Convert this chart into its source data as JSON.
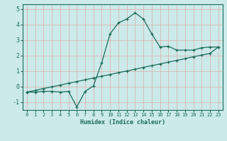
{
  "xlabel": "Humidex (Indice chaleur)",
  "bg_color": "#cceaea",
  "grid_color": "#b8d8d8",
  "line_color": "#1a6b5a",
  "xlim": [
    -0.5,
    23.5
  ],
  "ylim": [
    -1.5,
    5.3
  ],
  "xticks": [
    0,
    1,
    2,
    3,
    4,
    5,
    6,
    7,
    8,
    9,
    10,
    11,
    12,
    13,
    14,
    15,
    16,
    17,
    18,
    19,
    20,
    21,
    22,
    23
  ],
  "yticks": [
    -1,
    0,
    1,
    2,
    3,
    4,
    5
  ],
  "curve_x": [
    0,
    1,
    2,
    3,
    4,
    5,
    6,
    7,
    8,
    9,
    10,
    11,
    12,
    13,
    14,
    15,
    16,
    17,
    18,
    19,
    20,
    21,
    22,
    23
  ],
  "curve_y": [
    -0.35,
    -0.35,
    -0.3,
    -0.3,
    -0.35,
    -0.3,
    -1.3,
    -0.3,
    0.05,
    1.55,
    3.4,
    4.1,
    4.35,
    4.75,
    4.35,
    3.4,
    2.55,
    2.6,
    2.35,
    2.35,
    2.35,
    2.5,
    2.55,
    2.55
  ],
  "trend_x": [
    0,
    1,
    2,
    3,
    4,
    5,
    6,
    7,
    8,
    9,
    10,
    11,
    12,
    13,
    14,
    15,
    16,
    17,
    18,
    19,
    20,
    21,
    22,
    23
  ],
  "trend_y": [
    -0.35,
    -0.24,
    -0.12,
    -0.01,
    0.1,
    0.22,
    0.33,
    0.44,
    0.56,
    0.67,
    0.78,
    0.9,
    1.01,
    1.12,
    1.24,
    1.35,
    1.46,
    1.58,
    1.69,
    1.8,
    1.92,
    2.03,
    2.14,
    2.55
  ]
}
